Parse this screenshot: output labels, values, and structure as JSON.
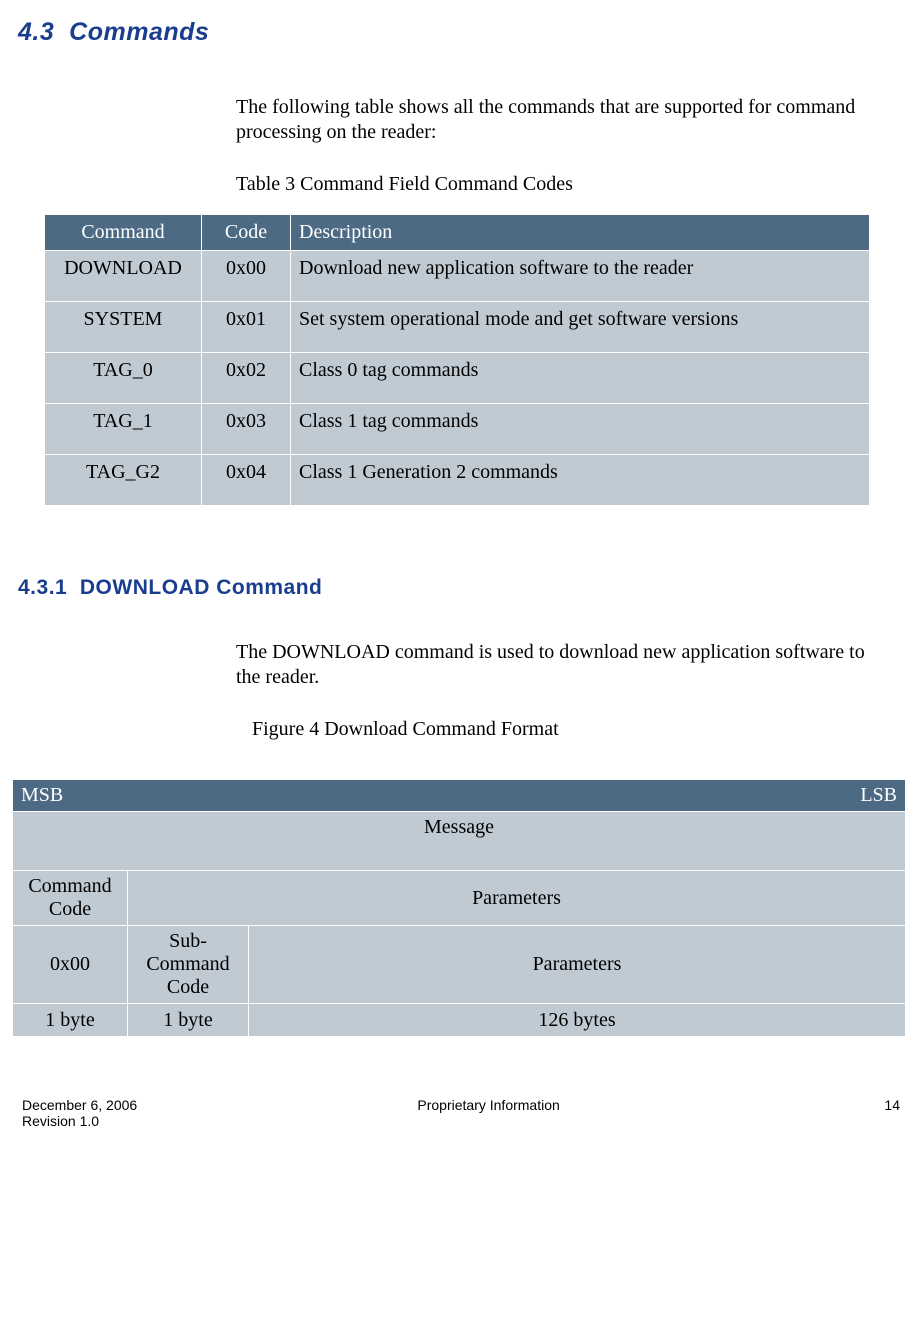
{
  "section": {
    "number": "4.3",
    "title": "Commands"
  },
  "intro_text": "The following table shows all the commands that are supported for command processing on the reader:",
  "table1": {
    "caption": "Table 3 Command Field Command Codes",
    "columns": [
      "Command",
      "Code",
      "Description"
    ],
    "rows": [
      [
        "DOWNLOAD",
        "0x00",
        "Download new application software to the reader"
      ],
      [
        "SYSTEM",
        "0x01",
        "Set system operational mode and get software versions"
      ],
      [
        "TAG_0",
        "0x02",
        "Class 0 tag commands"
      ],
      [
        "TAG_1",
        "0x03",
        "Class 1 tag commands"
      ],
      [
        "TAG_G2",
        "0x04",
        "Class 1 Generation 2 commands"
      ]
    ]
  },
  "subsection": {
    "number": "4.3.1",
    "title": "DOWNLOAD Command"
  },
  "sub_text": "The DOWNLOAD command is used to download new application software to the reader.",
  "figure_caption": "Figure 4 Download Command Format",
  "table2": {
    "msb": "MSB",
    "lsb": "LSB",
    "message": "Message",
    "command_code_label": "Command Code",
    "parameters1": "Parameters",
    "cmd_code_val": "0x00",
    "sub_cmd_label": "Sub-Command Code",
    "parameters2": "Parameters",
    "byte1": "1 byte",
    "byte2": "1 byte",
    "bytes126": "126 bytes"
  },
  "footer": {
    "date": "December 6, 2006",
    "revision": "Revision 1.0",
    "center": "Proprietary Information",
    "page": "14"
  },
  "colors": {
    "heading": "#1a3e8e",
    "table_header_bg": "#4d6a84",
    "table_cell_bg": "#c0cad3",
    "border": "#ffffff"
  }
}
